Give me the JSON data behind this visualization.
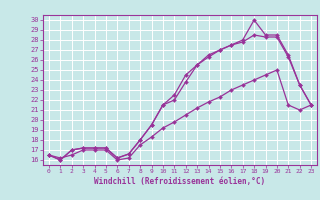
{
  "background_color": "#c8e8e8",
  "grid_color": "#ffffff",
  "line_color": "#993399",
  "marker_color": "#993399",
  "xlabel": "Windchill (Refroidissement éolien,°C)",
  "xlabel_color": "#993399",
  "tick_color": "#993399",
  "spine_color": "#993399",
  "xlim": [
    -0.5,
    23.5
  ],
  "ylim": [
    15.5,
    30.5
  ],
  "xticks": [
    0,
    1,
    2,
    3,
    4,
    5,
    6,
    7,
    8,
    9,
    10,
    11,
    12,
    13,
    14,
    15,
    16,
    17,
    18,
    19,
    20,
    21,
    22,
    23
  ],
  "yticks": [
    16,
    17,
    18,
    19,
    20,
    21,
    22,
    23,
    24,
    25,
    26,
    27,
    28,
    29,
    30
  ],
  "line1_x": [
    0,
    1,
    2,
    3,
    4,
    5,
    6,
    7,
    8,
    9,
    10,
    11,
    12,
    13,
    14,
    15,
    16,
    17,
    18,
    19,
    20,
    21,
    22,
    23
  ],
  "line1_y": [
    16.5,
    16.0,
    17.0,
    17.2,
    17.2,
    17.2,
    16.2,
    16.6,
    18.0,
    19.5,
    21.5,
    22.5,
    24.5,
    25.5,
    26.5,
    27.0,
    27.5,
    28.0,
    30.0,
    28.5,
    28.5,
    26.5,
    23.5,
    21.5
  ],
  "line2_x": [
    0,
    1,
    2,
    3,
    4,
    5,
    6,
    7,
    8,
    9,
    10,
    11,
    12,
    13,
    14,
    15,
    16,
    17,
    18,
    19,
    20,
    21,
    22,
    23
  ],
  "line2_y": [
    16.5,
    16.0,
    17.0,
    17.2,
    17.2,
    17.2,
    16.2,
    16.6,
    18.0,
    19.5,
    21.5,
    22.0,
    23.8,
    25.5,
    26.3,
    27.0,
    27.5,
    27.8,
    28.5,
    28.3,
    28.3,
    26.3,
    23.5,
    21.5
  ],
  "line3_x": [
    0,
    1,
    2,
    3,
    4,
    5,
    6,
    7,
    8,
    9,
    10,
    11,
    12,
    13,
    14,
    15,
    16,
    17,
    18,
    19,
    20,
    21,
    22,
    23
  ],
  "line3_y": [
    16.5,
    16.2,
    16.5,
    17.0,
    17.0,
    17.0,
    16.0,
    16.2,
    17.5,
    18.3,
    19.2,
    19.8,
    20.5,
    21.2,
    21.8,
    22.3,
    23.0,
    23.5,
    24.0,
    24.5,
    25.0,
    21.5,
    21.0,
    21.5
  ]
}
